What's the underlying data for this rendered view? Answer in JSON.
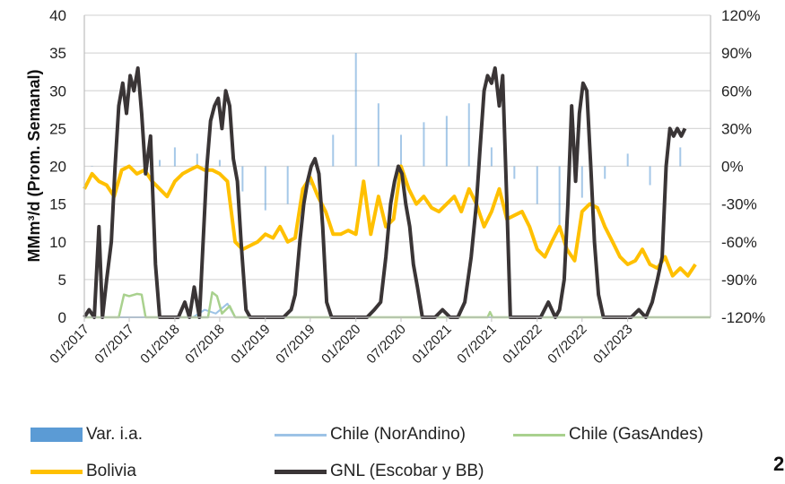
{
  "chart_data": {
    "type": "line",
    "ylabel": "MMm³/d (Prom. Semanal)",
    "xlabel": "",
    "ylim": [
      0,
      40
    ],
    "yticks": [
      0,
      5,
      10,
      15,
      20,
      25,
      30,
      35,
      40
    ],
    "y2lim": [
      -1.2,
      1.2
    ],
    "y2ticks": [
      "120%",
      "90%",
      "60%",
      "30%",
      "0%",
      "-30%",
      "-60%",
      "-90%",
      "-120%"
    ],
    "y2tick_values": [
      1.2,
      0.9,
      0.6,
      0.3,
      0,
      -0.3,
      -0.6,
      -0.9,
      -1.2
    ],
    "xlim": [
      "2017-01-01",
      "2023-12-01"
    ],
    "xticks": [
      "01/2017",
      "07/2017",
      "01/2018",
      "07/2018",
      "01/2019",
      "07/2019",
      "01/2020",
      "07/2020",
      "01/2021",
      "07/2021",
      "01/2022",
      "07/2022",
      "01/2023"
    ],
    "xtick_dates": [
      "2017-01-01",
      "2017-07-01",
      "2018-01-01",
      "2018-07-01",
      "2019-01-01",
      "2019-07-01",
      "2020-01-01",
      "2020-07-01",
      "2021-01-01",
      "2021-07-01",
      "2022-01-01",
      "2022-07-01",
      "2023-01-01"
    ],
    "grid": "horizontal",
    "legend_position": "bottom",
    "series": [
      {
        "name": "Var. i.a.",
        "type": "bar",
        "axis": "right",
        "color": "#5b9bd5",
        "x": [
          "2017-02-01",
          "2017-07-01",
          "2017-11-01",
          "2018-01-01",
          "2018-04-01",
          "2018-07-01",
          "2018-10-01",
          "2019-01-01",
          "2019-04-01",
          "2019-07-01",
          "2019-10-01",
          "2020-01-01",
          "2020-04-01",
          "2020-07-01",
          "2020-10-01",
          "2021-01-01",
          "2021-04-01",
          "2021-07-01",
          "2021-10-01",
          "2022-01-01",
          "2022-04-01",
          "2022-07-01",
          "2022-10-01",
          "2023-01-01",
          "2023-04-01",
          "2023-08-01"
        ],
        "y": [
          0.0,
          0.0,
          0.05,
          0.15,
          0.1,
          0.05,
          -0.2,
          -0.35,
          -0.3,
          -0.15,
          0.25,
          0.9,
          0.5,
          0.25,
          0.35,
          0.4,
          0.5,
          0.15,
          -0.1,
          -0.3,
          -0.5,
          -0.25,
          -0.1,
          0.1,
          -0.15,
          0.15
        ]
      },
      {
        "name": "Chile (NorAndino)",
        "color": "#9dc3e6",
        "x": [
          "2017-01-01",
          "2018-03-15",
          "2018-05-01",
          "2018-06-15",
          "2018-08-01",
          "2018-09-01",
          "2019-01-01",
          "2023-12-01"
        ],
        "y": [
          0,
          0,
          1,
          0.5,
          1.8,
          0,
          0,
          0
        ]
      },
      {
        "name": "Chile (GasAndes)",
        "color": "#a9d18e",
        "x": [
          "2017-01-01",
          "2017-05-20",
          "2017-06-10",
          "2017-07-01",
          "2017-08-01",
          "2017-08-20",
          "2017-09-05",
          "2018-05-15",
          "2018-06-01",
          "2018-06-20",
          "2018-07-10",
          "2018-08-10",
          "2018-09-01",
          "2021-06-15",
          "2021-06-25",
          "2021-07-05",
          "2023-12-01"
        ],
        "y": [
          0,
          0,
          3,
          2.8,
          3.1,
          3,
          0,
          0,
          3.3,
          2.8,
          0.5,
          1.5,
          0,
          0,
          0.7,
          0,
          0
        ]
      },
      {
        "name": "Bolivia",
        "color": "#ffc000",
        "x": [
          "2017-01-01",
          "2017-02-01",
          "2017-03-01",
          "2017-04-01",
          "2017-05-01",
          "2017-06-01",
          "2017-07-01",
          "2017-08-01",
          "2017-09-01",
          "2017-10-01",
          "2017-11-01",
          "2017-12-01",
          "2018-01-01",
          "2018-02-01",
          "2018-03-01",
          "2018-04-01",
          "2018-05-01",
          "2018-06-01",
          "2018-07-01",
          "2018-08-01",
          "2018-09-01",
          "2018-10-01",
          "2018-11-01",
          "2018-12-01",
          "2019-01-01",
          "2019-02-01",
          "2019-03-01",
          "2019-04-01",
          "2019-05-01",
          "2019-06-01",
          "2019-07-01",
          "2019-08-01",
          "2019-09-01",
          "2019-10-01",
          "2019-11-01",
          "2019-12-01",
          "2020-01-01",
          "2020-02-01",
          "2020-03-01",
          "2020-04-01",
          "2020-05-01",
          "2020-06-01",
          "2020-07-01",
          "2020-08-01",
          "2020-09-01",
          "2020-10-01",
          "2020-11-01",
          "2020-12-01",
          "2021-01-01",
          "2021-02-01",
          "2021-03-01",
          "2021-04-01",
          "2021-05-01",
          "2021-06-01",
          "2021-07-01",
          "2021-08-01",
          "2021-09-01",
          "2021-10-01",
          "2021-11-01",
          "2021-12-01",
          "2022-01-01",
          "2022-02-01",
          "2022-03-01",
          "2022-04-01",
          "2022-05-01",
          "2022-06-01",
          "2022-07-01",
          "2022-08-01",
          "2022-09-01",
          "2022-10-01",
          "2022-11-01",
          "2022-12-01",
          "2023-01-01",
          "2023-02-01",
          "2023-03-01",
          "2023-04-01",
          "2023-05-01",
          "2023-06-01",
          "2023-07-01",
          "2023-08-01",
          "2023-09-01",
          "2023-10-01"
        ],
        "y": [
          17,
          19,
          18,
          17.5,
          16,
          19.5,
          20,
          19,
          19.5,
          18,
          17,
          16,
          18,
          19,
          19.5,
          20,
          19.5,
          19.5,
          19,
          18,
          10,
          9,
          9.5,
          10,
          11,
          10.5,
          12,
          10,
          10.5,
          17,
          18.5,
          16,
          14,
          11,
          11,
          11.5,
          11,
          18,
          11,
          16,
          12,
          13,
          20,
          17,
          15,
          16,
          14.5,
          14,
          15,
          16,
          14,
          17,
          15,
          12,
          14,
          17,
          13,
          13.5,
          14,
          12,
          9,
          8,
          10,
          12,
          9,
          7.5,
          14,
          15,
          14.5,
          12,
          10,
          8,
          7,
          7.5,
          9,
          7,
          6.5,
          8,
          5.5,
          6.5,
          5.5,
          7
        ]
      },
      {
        "name": "GNL (Escobar y BB)",
        "color": "#3a3536",
        "x": [
          "2017-01-01",
          "2017-01-20",
          "2017-02-10",
          "2017-03-01",
          "2017-03-15",
          "2017-04-01",
          "2017-04-20",
          "2017-05-05",
          "2017-05-20",
          "2017-06-05",
          "2017-06-20",
          "2017-07-05",
          "2017-07-20",
          "2017-08-05",
          "2017-08-20",
          "2017-09-05",
          "2017-09-25",
          "2017-10-15",
          "2017-11-01",
          "2017-12-15",
          "2018-01-15",
          "2018-02-10",
          "2018-03-01",
          "2018-03-20",
          "2018-04-10",
          "2018-04-25",
          "2018-05-10",
          "2018-05-25",
          "2018-06-10",
          "2018-06-25",
          "2018-07-10",
          "2018-07-25",
          "2018-08-10",
          "2018-08-25",
          "2018-09-10",
          "2018-09-25",
          "2018-10-15",
          "2018-11-01",
          "2018-12-01",
          "2019-01-15",
          "2019-02-15",
          "2019-03-15",
          "2019-04-15",
          "2019-05-01",
          "2019-05-20",
          "2019-06-05",
          "2019-06-20",
          "2019-07-05",
          "2019-07-20",
          "2019-08-05",
          "2019-08-20",
          "2019-09-05",
          "2019-09-25",
          "2019-10-15",
          "2019-11-15",
          "2019-12-15",
          "2020-01-15",
          "2020-02-15",
          "2020-03-15",
          "2020-04-10",
          "2020-05-01",
          "2020-05-20",
          "2020-06-05",
          "2020-06-20",
          "2020-07-05",
          "2020-07-20",
          "2020-08-05",
          "2020-08-20",
          "2020-09-05",
          "2020-09-25",
          "2020-10-15",
          "2020-11-15",
          "2020-12-15",
          "2021-01-15",
          "2021-02-15",
          "2021-03-15",
          "2021-04-10",
          "2021-05-01",
          "2021-05-15",
          "2021-06-01",
          "2021-06-15",
          "2021-07-01",
          "2021-07-15",
          "2021-08-01",
          "2021-08-15",
          "2021-09-01",
          "2021-09-15",
          "2021-10-01",
          "2021-10-15",
          "2021-11-15",
          "2021-12-15",
          "2022-01-15",
          "2022-02-15",
          "2022-03-15",
          "2022-04-01",
          "2022-04-20",
          "2022-05-05",
          "2022-05-20",
          "2022-06-05",
          "2022-06-20",
          "2022-07-05",
          "2022-07-20",
          "2022-08-05",
          "2022-08-20",
          "2022-09-05",
          "2022-09-25",
          "2022-10-15",
          "2022-11-15",
          "2022-12-15",
          "2023-01-15",
          "2023-02-15",
          "2023-03-15",
          "2023-04-10",
          "2023-05-01",
          "2023-05-20",
          "2023-06-05",
          "2023-06-20",
          "2023-07-05",
          "2023-07-20",
          "2023-08-05",
          "2023-08-20"
        ],
        "y": [
          0,
          1,
          0,
          12,
          0,
          5,
          10,
          20,
          28,
          31,
          27,
          32,
          30,
          33,
          27,
          19,
          24,
          7,
          0,
          0,
          0,
          2,
          0,
          4,
          0,
          10,
          20,
          26,
          28,
          29,
          25,
          30,
          28,
          21,
          18,
          10,
          1,
          0,
          0,
          0,
          0,
          0,
          1,
          3,
          10,
          15,
          18,
          20,
          21,
          19,
          12,
          2,
          0,
          0,
          0,
          0,
          0,
          0,
          1,
          2,
          8,
          15,
          18,
          20,
          19,
          15,
          12,
          7,
          4,
          0,
          0,
          0,
          1,
          0,
          0,
          2,
          8,
          15,
          22,
          30,
          32,
          31,
          33,
          28,
          32,
          15,
          0,
          0,
          0,
          0,
          0,
          0,
          2,
          0,
          1,
          5,
          15,
          28,
          18,
          27,
          31,
          30,
          20,
          10,
          3,
          0,
          0,
          0,
          0,
          0,
          1,
          0,
          2,
          5,
          8,
          20,
          25,
          24,
          25,
          24,
          25
        ]
      }
    ]
  },
  "legend": {
    "var_ia": "Var. i.a.",
    "chile_norandino": "Chile (NorAndino)",
    "chile_gasandes": "Chile (GasAndes)",
    "bolivia": "Bolivia",
    "gnl": "GNL (Escobar y BB)"
  },
  "page_number": "2"
}
